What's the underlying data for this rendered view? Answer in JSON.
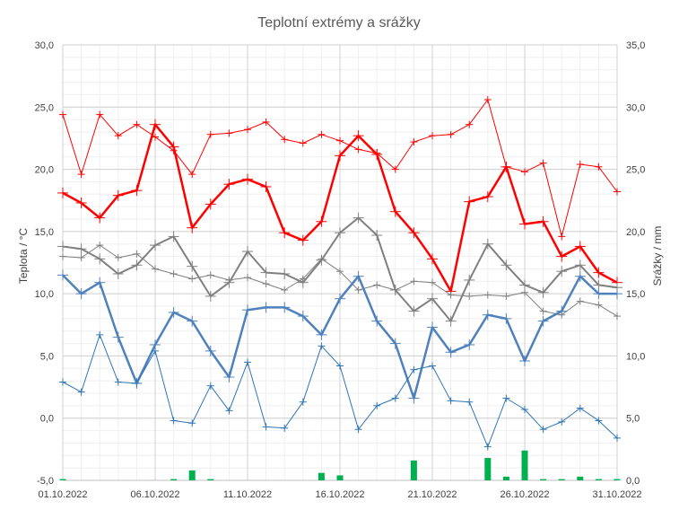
{
  "chart_data": {
    "type": "line",
    "title": "Teplotní extrémy a srážky",
    "ylabel": "Teplota / °C",
    "y2label": "Srážky / mm",
    "ylim": [
      -5,
      30
    ],
    "y2lim": [
      0,
      35
    ],
    "yticks": [
      "-5,0",
      "0,0",
      "5,0",
      "10,0",
      "15,0",
      "20,0",
      "25,0",
      "30,0"
    ],
    "y2ticks": [
      "0,0",
      "5,0",
      "10,0",
      "15,0",
      "20,0",
      "25,0",
      "30,0",
      "35,0"
    ],
    "xticks": [
      {
        "day": 1,
        "label": "01.10.2022"
      },
      {
        "day": 6,
        "label": "06.10.2022"
      },
      {
        "day": 11,
        "label": "11.10.2022"
      },
      {
        "day": 16,
        "label": "16.10.2022"
      },
      {
        "day": 21,
        "label": "21.10.2022"
      },
      {
        "day": 26,
        "label": "26.10.2022"
      },
      {
        "day": 31,
        "label": "31.10.2022"
      }
    ],
    "grid": true,
    "x": [
      1,
      2,
      3,
      4,
      5,
      6,
      7,
      8,
      9,
      10,
      11,
      12,
      13,
      14,
      15,
      16,
      17,
      18,
      19,
      20,
      21,
      22,
      23,
      24,
      25,
      26,
      27,
      28,
      29,
      30,
      31
    ],
    "series": [
      {
        "role": "max-thin",
        "color": "#ff0000",
        "width": 1,
        "axis": "left",
        "values": [
          24.4,
          19.6,
          24.4,
          22.7,
          23.6,
          22.6,
          21.5,
          19.6,
          22.8,
          22.9,
          23.2,
          23.8,
          22.4,
          22.1,
          22.8,
          22.3,
          21.6,
          21.3,
          20.0,
          22.2,
          22.7,
          22.8,
          23.6,
          25.6,
          20.2,
          19.8,
          20.5,
          14.6,
          20.4,
          20.2,
          18.2
        ]
      },
      {
        "role": "max-thick",
        "color": "#ff0000",
        "width": 2.5,
        "axis": "left",
        "values": [
          18.1,
          17.3,
          16.1,
          17.9,
          18.3,
          23.6,
          21.8,
          15.3,
          17.2,
          18.8,
          19.2,
          18.6,
          14.9,
          14.3,
          15.8,
          21.1,
          22.7,
          21.2,
          16.6,
          14.9,
          12.8,
          10.2,
          17.4,
          17.8,
          20.2,
          15.6,
          15.8,
          13.0,
          13.8,
          11.7,
          10.9
        ]
      },
      {
        "role": "avg-thin",
        "color": "#808080",
        "width": 1,
        "axis": "left",
        "values": [
          13.0,
          12.9,
          13.9,
          12.9,
          13.2,
          12.0,
          11.6,
          11.2,
          11.5,
          11.1,
          11.3,
          10.8,
          10.3,
          11.2,
          12.8,
          11.8,
          10.3,
          10.7,
          10.3,
          11.0,
          10.9,
          9.9,
          9.8,
          9.9,
          9.8,
          10.1,
          8.6,
          8.3,
          9.4,
          9.1,
          8.2
        ]
      },
      {
        "role": "avg-thick",
        "color": "#808080",
        "width": 2,
        "axis": "left",
        "values": [
          13.8,
          13.6,
          12.8,
          11.6,
          12.3,
          13.9,
          14.6,
          12.2,
          9.8,
          10.9,
          13.4,
          11.7,
          11.6,
          10.9,
          12.7,
          14.9,
          16.1,
          14.7,
          10.3,
          8.6,
          9.6,
          7.8,
          11.1,
          14.0,
          12.3,
          10.7,
          10.1,
          11.8,
          12.3,
          10.7,
          10.5
        ]
      },
      {
        "role": "min-thick",
        "color": "#4f81bd",
        "width": 2.5,
        "axis": "left",
        "values": [
          11.5,
          10.0,
          10.9,
          6.5,
          2.8,
          5.9,
          8.5,
          7.8,
          5.4,
          3.3,
          8.7,
          8.9,
          8.9,
          8.2,
          6.7,
          9.6,
          11.4,
          7.8,
          6.0,
          1.6,
          7.3,
          5.3,
          5.9,
          8.3,
          8.0,
          4.6,
          7.8,
          8.6,
          11.4,
          10.0,
          10.0
        ]
      },
      {
        "role": "min-thin",
        "color": "#2e75b6",
        "width": 1,
        "axis": "left",
        "values": [
          2.9,
          2.1,
          6.7,
          2.9,
          2.8,
          5.4,
          -0.2,
          -0.4,
          2.6,
          0.6,
          4.5,
          -0.7,
          -0.8,
          1.3,
          5.8,
          4.2,
          -0.9,
          1.0,
          1.6,
          3.9,
          4.2,
          1.4,
          1.3,
          -2.3,
          1.6,
          0.7,
          -0.9,
          -0.3,
          0.8,
          -0.2,
          -1.6
        ]
      }
    ],
    "precipitation": {
      "color": "#00b050",
      "axis": "right",
      "type": "bar",
      "values": [
        0.1,
        0,
        0,
        0,
        0,
        0,
        0.1,
        0.8,
        0.1,
        0,
        0,
        0,
        0,
        0,
        0.6,
        0.4,
        0,
        0,
        0,
        1.6,
        0,
        0,
        0,
        1.8,
        0.3,
        2.4,
        0.1,
        0.1,
        0.3,
        0.1,
        0.1
      ]
    }
  }
}
